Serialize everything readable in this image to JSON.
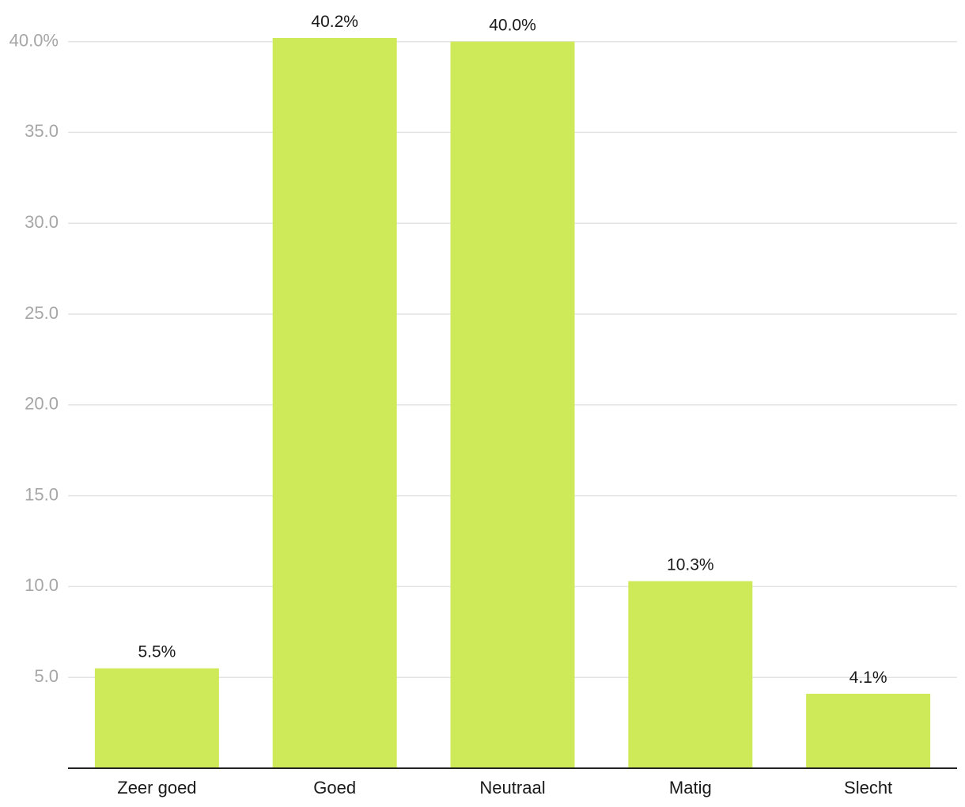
{
  "chart_data": {
    "type": "bar",
    "categories": [
      "Zeer goed",
      "Goed",
      "Neutraal",
      "Matig",
      "Slecht"
    ],
    "values": [
      5.5,
      40.2,
      40.0,
      10.3,
      4.1
    ],
    "data_labels": [
      "5.5%",
      "40.2%",
      "40.0%",
      "10.3%",
      "4.1%"
    ],
    "y_ticks": [
      5.0,
      10.0,
      15.0,
      20.0,
      25.0,
      30.0,
      35.0,
      40.0
    ],
    "y_tick_labels": [
      "5.0",
      "10.0",
      "15.0",
      "20.0",
      "25.0",
      "30.0",
      "35.0",
      "40.0%"
    ],
    "ylim": [
      0,
      40.2
    ],
    "grid": true,
    "legend": "none",
    "title": "",
    "xlabel": "",
    "ylabel": "",
    "colors": {
      "bar": "#cfea59",
      "grid": "#e3e3e3",
      "axis": "#222222",
      "tick_text": "#a6a6a6",
      "label_text": "#1a1a1a"
    }
  }
}
